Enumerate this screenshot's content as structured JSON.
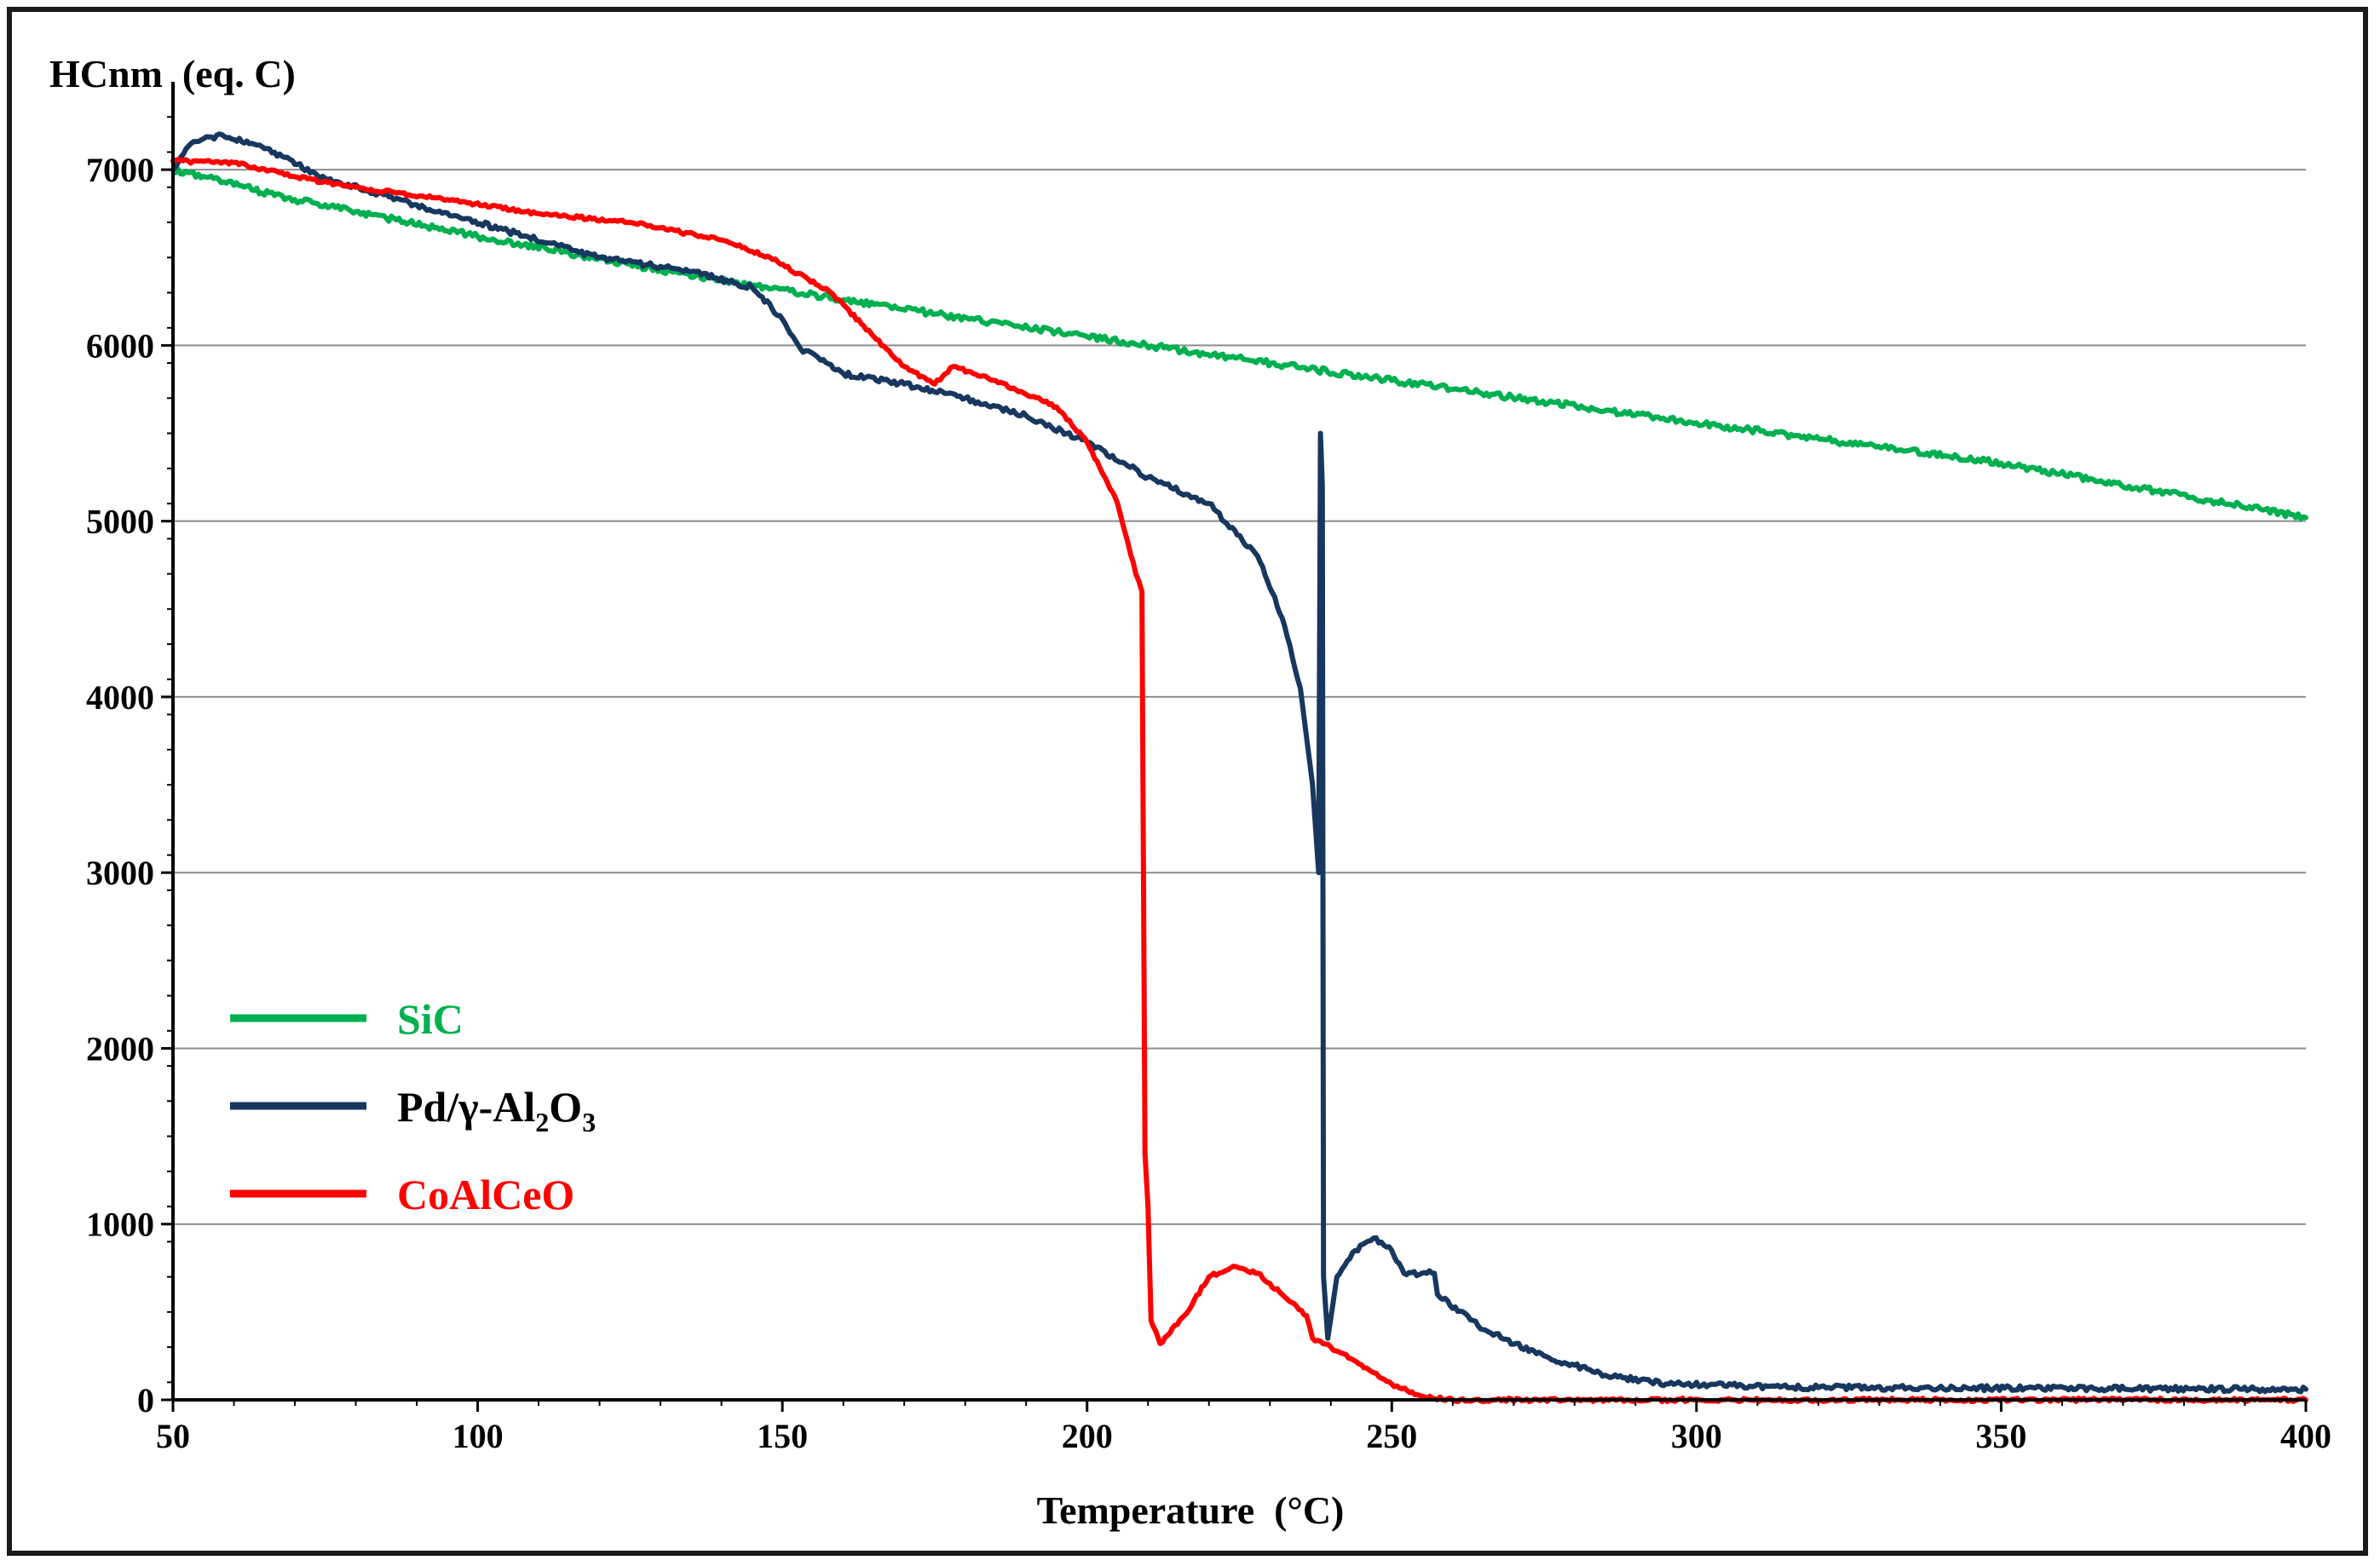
{
  "chart_data": {
    "type": "line",
    "title": "",
    "ylabel": "HCnm  (eq. C)",
    "xlabel": "Temperature  (°C)",
    "xlim": [
      50,
      400
    ],
    "ylim": [
      0,
      7500
    ],
    "grid": true,
    "x_ticks": [
      50,
      100,
      150,
      200,
      250,
      300,
      350,
      400
    ],
    "x_tick_labels": [
      "50",
      "100",
      "150",
      "200",
      "250",
      "300",
      "350",
      "400"
    ],
    "y_ticks": [
      0,
      1000,
      2000,
      3000,
      4000,
      5000,
      6000,
      7000
    ],
    "y_tick_labels": [
      "0",
      "1000",
      "2000",
      "3000",
      "4000",
      "5000",
      "6000",
      "7000"
    ],
    "legend_position": "left-bottom",
    "series": [
      {
        "name": "SiC",
        "legend_main": "SiC",
        "color": "#00b050",
        "points": [
          [
            50,
            7000
          ],
          [
            70,
            6830
          ],
          [
            100,
            6620
          ],
          [
            130,
            6430
          ],
          [
            160,
            6260
          ],
          [
            200,
            6050
          ],
          [
            250,
            5800
          ],
          [
            300,
            5560
          ],
          [
            350,
            5330
          ],
          [
            400,
            5020
          ]
        ]
      },
      {
        "name": "Pd/γ-Al2O3",
        "legend_main": "Pd/γ-Al",
        "legend_sub1": "2",
        "legend_mid": "O",
        "legend_sub2": "3",
        "color": "#17375e",
        "points": [
          [
            50,
            7000
          ],
          [
            53,
            7150
          ],
          [
            58,
            7200
          ],
          [
            65,
            7120
          ],
          [
            75,
            6950
          ],
          [
            90,
            6800
          ],
          [
            105,
            6650
          ],
          [
            120,
            6500
          ],
          [
            135,
            6420
          ],
          [
            145,
            6330
          ],
          [
            150,
            6150
          ],
          [
            153,
            5980
          ],
          [
            160,
            5840
          ],
          [
            170,
            5780
          ],
          [
            180,
            5700
          ],
          [
            190,
            5600
          ],
          [
            200,
            5450
          ],
          [
            210,
            5250
          ],
          [
            220,
            5100
          ],
          [
            228,
            4800
          ],
          [
            232,
            4450
          ],
          [
            235,
            4050
          ],
          [
            237,
            3500
          ],
          [
            238,
            3000
          ],
          [
            238.3,
            5500
          ],
          [
            238.6,
            5200
          ],
          [
            238.8,
            700
          ],
          [
            239.5,
            350
          ],
          [
            241,
            700
          ],
          [
            244,
            850
          ],
          [
            247,
            920
          ],
          [
            250,
            850
          ],
          [
            252,
            720
          ],
          [
            257,
            720
          ],
          [
            257.5,
            600
          ],
          [
            265,
            400
          ],
          [
            275,
            250
          ],
          [
            285,
            140
          ],
          [
            295,
            90
          ],
          [
            320,
            70
          ],
          [
            400,
            60
          ]
        ]
      },
      {
        "name": "CoAlCeO",
        "legend_main": "CoAlCeO",
        "color": "#ff0000",
        "points": [
          [
            50,
            7050
          ],
          [
            60,
            7040
          ],
          [
            70,
            6960
          ],
          [
            80,
            6900
          ],
          [
            95,
            6830
          ],
          [
            110,
            6750
          ],
          [
            125,
            6700
          ],
          [
            140,
            6600
          ],
          [
            148,
            6500
          ],
          [
            158,
            6300
          ],
          [
            165,
            6050
          ],
          [
            170,
            5880
          ],
          [
            175,
            5780
          ],
          [
            178,
            5880
          ],
          [
            185,
            5800
          ],
          [
            195,
            5650
          ],
          [
            200,
            5450
          ],
          [
            205,
            5100
          ],
          [
            208,
            4700
          ],
          [
            209,
            4600
          ],
          [
            209.5,
            1400
          ],
          [
            210,
            1100
          ],
          [
            210.5,
            450
          ],
          [
            212,
            320
          ],
          [
            216,
            480
          ],
          [
            220,
            700
          ],
          [
            224,
            760
          ],
          [
            228,
            720
          ],
          [
            232,
            600
          ],
          [
            236,
            480
          ],
          [
            237,
            350
          ],
          [
            240,
            300
          ],
          [
            245,
            200
          ],
          [
            250,
            90
          ],
          [
            255,
            20
          ],
          [
            260,
            0
          ],
          [
            400,
            0
          ]
        ]
      }
    ]
  }
}
